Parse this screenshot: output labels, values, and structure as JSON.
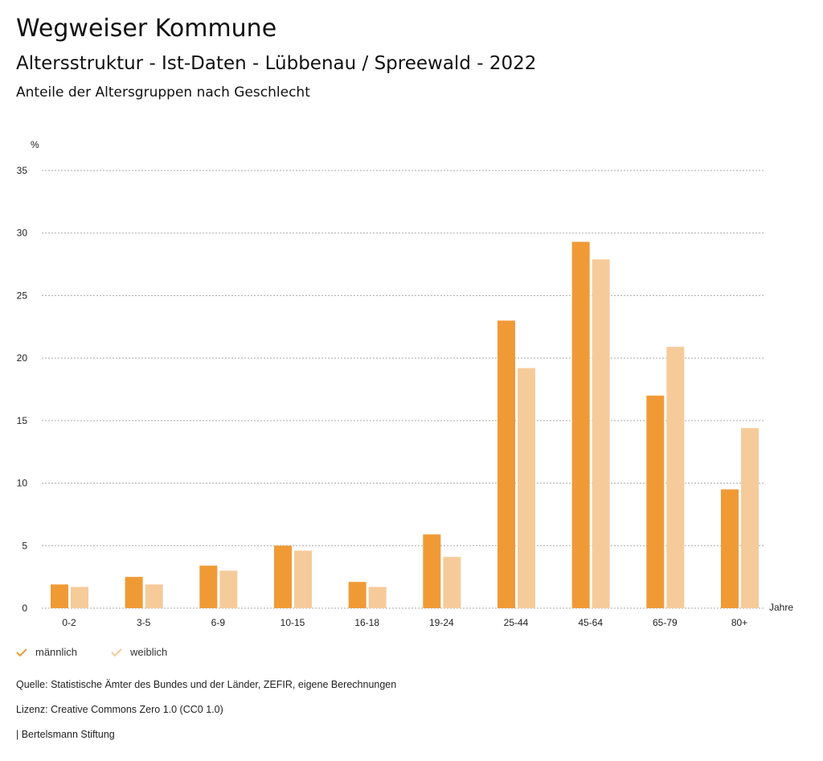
{
  "header": {
    "title": "Wegweiser Kommune",
    "subtitle": "Altersstruktur - Ist-Daten - Lübbenau / Spreewald - 2022",
    "chart_title": "Anteile der Altersgruppen nach Geschlecht"
  },
  "chart_data": {
    "type": "bar",
    "title": "Anteile der Altersgruppen nach Geschlecht",
    "ylabel": "%",
    "xlabel": "Jahre",
    "ylim": [
      0,
      35
    ],
    "yticks": [
      0,
      5,
      10,
      15,
      20,
      25,
      30,
      35
    ],
    "grid": true,
    "legend": "bottom-left",
    "categories": [
      "0-2",
      "3-5",
      "6-9",
      "10-15",
      "16-18",
      "19-24",
      "25-44",
      "45-64",
      "65-79",
      "80+"
    ],
    "series": [
      {
        "name": "männlich",
        "color": "#f09a36",
        "values": [
          1.9,
          2.5,
          3.4,
          5.0,
          2.1,
          5.9,
          23.0,
          29.3,
          17.0,
          9.5
        ]
      },
      {
        "name": "weiblich",
        "color": "#f6cb9a",
        "values": [
          1.7,
          1.9,
          3.0,
          4.6,
          1.7,
          4.1,
          19.2,
          27.9,
          20.9,
          14.4
        ]
      }
    ]
  },
  "footer": {
    "source": "Quelle: Statistische Ämter des Bundes und der Länder, ZEFIR, eigene Berechnungen",
    "license": "Lizenz: Creative Commons Zero 1.0 (CC0 1.0)",
    "brand": "| Bertelsmann Stiftung"
  }
}
